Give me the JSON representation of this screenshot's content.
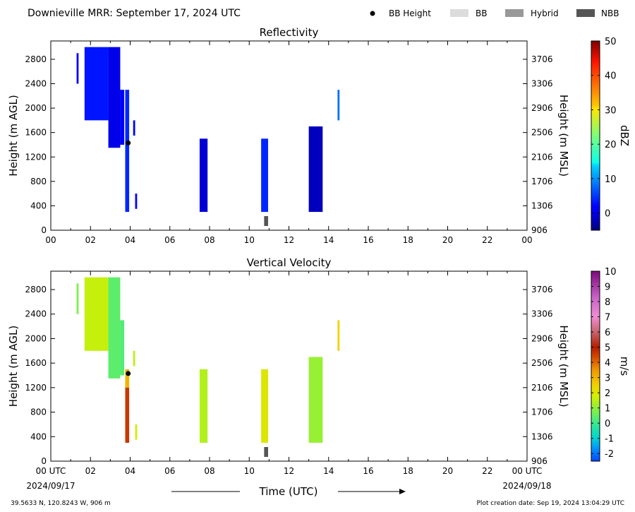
{
  "header": {
    "title": "Downieville MRR:  September 17, 2024 UTC",
    "legend": [
      {
        "label": "BB Height",
        "icon": "dot-icon",
        "color": "#000000"
      },
      {
        "label": "BB",
        "icon": "bb-swatch-icon",
        "color": "#dcdcdc"
      },
      {
        "label": "Hybrid",
        "icon": "hybrid-swatch-icon",
        "color": "#999999"
      },
      {
        "label": "NBB",
        "icon": "nbb-swatch-icon",
        "color": "#555555"
      }
    ]
  },
  "chart_data": [
    {
      "type": "heatmap",
      "title": "Reflectivity",
      "ylabel": "Height (m AGL)",
      "ylabel_right": "Height (m MSL)",
      "xlim": [
        0,
        24
      ],
      "ylim": [
        0,
        3100
      ],
      "x_ticks": [
        "00",
        "02",
        "04",
        "06",
        "08",
        "10",
        "12",
        "14",
        "16",
        "18",
        "20",
        "22",
        "00"
      ],
      "y_ticks": [
        0,
        400,
        800,
        1200,
        1600,
        2000,
        2400,
        2800
      ],
      "y_ticks_right": [
        906,
        1306,
        1706,
        2106,
        2506,
        2906,
        3306,
        3706
      ],
      "colorbar": {
        "label": "dBZ",
        "ticks": [
          0,
          10,
          20,
          30,
          40,
          50
        ],
        "range": [
          -5,
          50
        ]
      },
      "echoes": [
        {
          "t0": 1.3,
          "t1": 1.4,
          "h0": 2400,
          "h1": 2900,
          "dbz": 2
        },
        {
          "t0": 1.7,
          "t1": 2.9,
          "h0": 1800,
          "h1": 3000,
          "dbz": 3
        },
        {
          "t0": 2.9,
          "t1": 3.5,
          "h0": 1350,
          "h1": 3000,
          "dbz": 0
        },
        {
          "t0": 3.5,
          "t1": 3.7,
          "h0": 1400,
          "h1": 2300,
          "dbz": 1
        },
        {
          "t0": 3.75,
          "t1": 3.95,
          "h0": 300,
          "h1": 2300,
          "dbz": 4
        },
        {
          "t0": 4.15,
          "t1": 4.25,
          "h0": 1550,
          "h1": 1800,
          "dbz": 1
        },
        {
          "t0": 4.25,
          "t1": 4.35,
          "h0": 350,
          "h1": 600,
          "dbz": 2
        },
        {
          "t0": 7.5,
          "t1": 7.9,
          "h0": 300,
          "h1": 1500,
          "dbz": -1
        },
        {
          "t0": 10.6,
          "t1": 10.95,
          "h0": 300,
          "h1": 1500,
          "dbz": 4
        },
        {
          "t0": 13.0,
          "t1": 13.7,
          "h0": 300,
          "h1": 1700,
          "dbz": -2
        },
        {
          "t0": 14.45,
          "t1": 14.55,
          "h0": 1800,
          "h1": 2300,
          "dbz": 8
        }
      ],
      "bb_height": [
        {
          "t": 3.9,
          "h": 1430
        }
      ],
      "nbb_flags": [
        {
          "t0": 10.75,
          "t1": 10.95
        }
      ]
    },
    {
      "type": "heatmap",
      "title": "Vertical Velocity",
      "ylabel": "Height (m AGL)",
      "ylabel_right": "Height (m MSL)",
      "xlabel": "Time (UTC)",
      "xlim": [
        0,
        24
      ],
      "ylim": [
        0,
        3100
      ],
      "x_ticks": [
        "00 UTC",
        "02",
        "04",
        "06",
        "08",
        "10",
        "12",
        "14",
        "16",
        "18",
        "20",
        "22",
        "00 UTC"
      ],
      "x_dates": [
        "2024/09/17",
        "2024/09/18"
      ],
      "y_ticks": [
        0,
        400,
        800,
        1200,
        1600,
        2000,
        2400,
        2800
      ],
      "y_ticks_right": [
        906,
        1306,
        1706,
        2106,
        2506,
        2906,
        3306,
        3706
      ],
      "colorbar": {
        "label": "m/s",
        "ticks": [
          -2,
          -1,
          0,
          1,
          2,
          3,
          4,
          5,
          6,
          7,
          8,
          9,
          10
        ],
        "range": [
          -2.5,
          10
        ]
      },
      "echoes": [
        {
          "t0": 1.3,
          "t1": 1.4,
          "h0": 2400,
          "h1": 2900,
          "ms": 0.8
        },
        {
          "t0": 1.7,
          "t1": 2.9,
          "h0": 1800,
          "h1": 3000,
          "ms": 1.6
        },
        {
          "t0": 2.9,
          "t1": 3.5,
          "h0": 1350,
          "h1": 3000,
          "ms": 0.4
        },
        {
          "t0": 3.5,
          "t1": 3.7,
          "h0": 1400,
          "h1": 2300,
          "ms": 0.3
        },
        {
          "t0": 3.75,
          "t1": 3.95,
          "h0": 1200,
          "h1": 1500,
          "ms": 3.0
        },
        {
          "t0": 3.75,
          "t1": 3.95,
          "h0": 300,
          "h1": 1200,
          "ms": 4.6
        },
        {
          "t0": 4.15,
          "t1": 4.25,
          "h0": 1550,
          "h1": 1800,
          "ms": 1.5
        },
        {
          "t0": 4.25,
          "t1": 4.35,
          "h0": 350,
          "h1": 600,
          "ms": 1.8
        },
        {
          "t0": 7.5,
          "t1": 7.9,
          "h0": 300,
          "h1": 1500,
          "ms": 1.4
        },
        {
          "t0": 10.6,
          "t1": 10.95,
          "h0": 300,
          "h1": 1500,
          "ms": 2.0
        },
        {
          "t0": 13.0,
          "t1": 13.7,
          "h0": 300,
          "h1": 1700,
          "ms": 1.1
        },
        {
          "t0": 14.45,
          "t1": 14.55,
          "h0": 1800,
          "h1": 2300,
          "ms": 2.5
        }
      ],
      "bb_height": [
        {
          "t": 3.9,
          "h": 1430
        }
      ],
      "nbb_flags": [
        {
          "t0": 10.75,
          "t1": 10.95
        }
      ]
    }
  ],
  "footer": {
    "location": "39.5633 N, 120.8243 W, 906 m",
    "created": "Plot creation date: Sep 19, 2024 13:04:29 UTC"
  }
}
